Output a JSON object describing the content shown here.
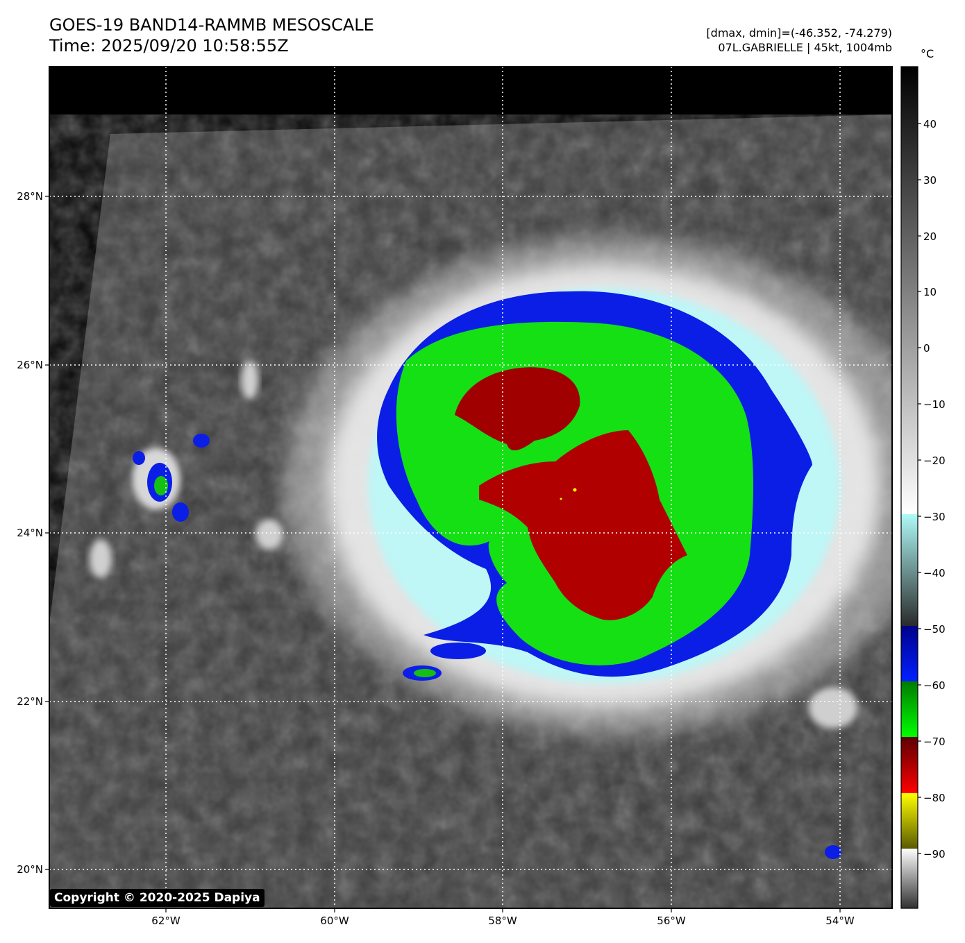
{
  "header": {
    "title_line1": "GOES-19 BAND14-RAMMB MESOSCALE",
    "title_line2": "Time: 2025/09/20 10:58:55Z",
    "info_line1": "[dmax, dmin]=(-46.352, -74.279)",
    "info_line2": "07L.GABRIELLE | 45kt, 1004mb"
  },
  "map": {
    "lon_ticks": [
      "62°W",
      "60°W",
      "58°W",
      "56°W",
      "54°W"
    ],
    "lat_ticks": [
      "28°N",
      "26°N",
      "24°N",
      "22°N",
      "20°N"
    ],
    "copyright": "Copyright © 2020-2025 Dapiya"
  },
  "colorbar": {
    "unit": "°C",
    "ticks": [
      "40",
      "30",
      "20",
      "10",
      "0",
      "−10",
      "−20",
      "−30",
      "−40",
      "−50",
      "−60",
      "−70",
      "−80",
      "−90"
    ]
  }
}
